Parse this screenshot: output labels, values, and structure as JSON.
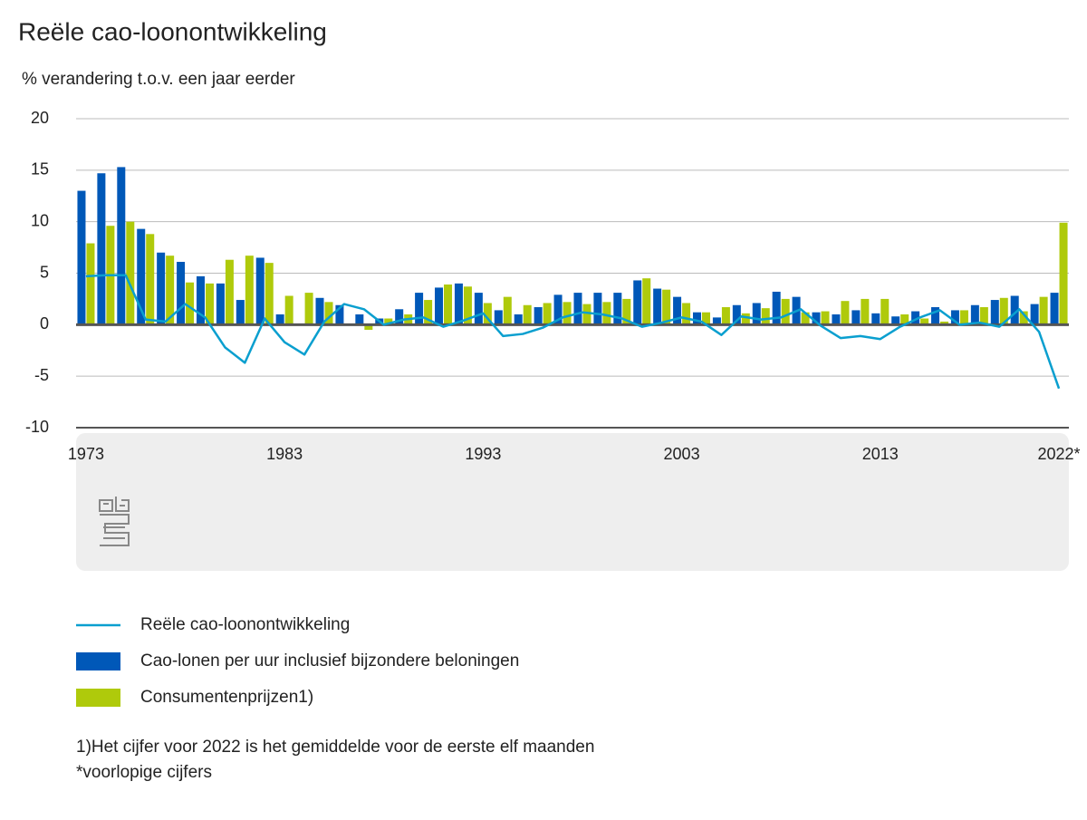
{
  "chart_data": {
    "type": "bar",
    "title": "Reële cao-loonontwikkeling",
    "subtitle": "% verandering t.o.v. een jaar eerder",
    "categories": [
      "1973",
      null,
      null,
      null,
      null,
      null,
      null,
      null,
      null,
      null,
      "1983",
      null,
      null,
      null,
      null,
      null,
      null,
      null,
      null,
      null,
      "1993",
      null,
      null,
      null,
      null,
      null,
      null,
      null,
      null,
      null,
      "2003",
      null,
      null,
      null,
      null,
      null,
      null,
      null,
      null,
      null,
      "2013",
      null,
      null,
      null,
      null,
      null,
      null,
      null,
      null,
      "2022*"
    ],
    "series": [
      {
        "name": "Reële cao-loonontwikkeling",
        "type": "line",
        "color": "#0a9fcf",
        "values": [
          4.7,
          4.8,
          4.8,
          0.5,
          0.3,
          2.0,
          0.7,
          -2.2,
          -3.7,
          0.6,
          -1.7,
          -2.9,
          0.3,
          2.0,
          1.5,
          0.0,
          0.5,
          0.7,
          -0.2,
          0.4,
          1.1,
          -1.1,
          -0.9,
          -0.3,
          0.7,
          1.2,
          1.0,
          0.6,
          -0.2,
          0.2,
          0.7,
          0.3,
          -1.0,
          0.8,
          0.5,
          0.7,
          1.5,
          -0.1,
          -1.3,
          -1.1,
          -1.4,
          -0.2,
          0.7,
          1.4,
          0.0,
          0.2,
          -0.2,
          1.5,
          -0.7,
          -6.2
        ]
      },
      {
        "name": "Cao-lonen per uur inclusief bijzondere beloningen",
        "type": "bar",
        "color": "#0058b8",
        "values": [
          13.0,
          14.7,
          15.3,
          9.3,
          7.0,
          6.1,
          4.7,
          4.0,
          2.4,
          6.5,
          1.0,
          0.1,
          2.6,
          1.9,
          1.0,
          0.6,
          1.5,
          3.1,
          3.6,
          4.0,
          3.1,
          1.4,
          1.0,
          1.7,
          2.9,
          3.1,
          3.1,
          3.1,
          4.3,
          3.5,
          2.7,
          1.2,
          0.7,
          1.9,
          2.1,
          3.2,
          2.7,
          1.2,
          1.0,
          1.4,
          1.1,
          0.8,
          1.3,
          1.7,
          1.4,
          1.9,
          2.4,
          2.8,
          2.0,
          3.1
        ]
      },
      {
        "name": "Consumentenprijzen1)",
        "type": "bar",
        "color": "#afca0b",
        "values": [
          7.9,
          9.6,
          10.0,
          8.8,
          6.7,
          4.1,
          4.0,
          6.3,
          6.7,
          6.0,
          2.8,
          3.1,
          2.2,
          0.1,
          -0.5,
          0.6,
          1.0,
          2.4,
          3.9,
          3.7,
          2.1,
          2.7,
          1.9,
          2.1,
          2.2,
          2.0,
          2.2,
          2.5,
          4.5,
          3.4,
          2.1,
          1.2,
          1.7,
          1.1,
          1.6,
          2.5,
          1.2,
          1.3,
          2.3,
          2.5,
          2.5,
          1.0,
          0.6,
          0.3,
          1.4,
          1.7,
          2.6,
          1.3,
          2.7,
          9.9
        ]
      }
    ],
    "ylim": [
      -10,
      20
    ],
    "yticks": [
      -10,
      -5,
      0,
      5,
      10,
      15,
      20
    ],
    "grid": true,
    "notes": [
      "1)Het cijfer voor 2022 is het gemiddelde voor de eerste elf maanden",
      "*voorlopige cijfers"
    ]
  }
}
